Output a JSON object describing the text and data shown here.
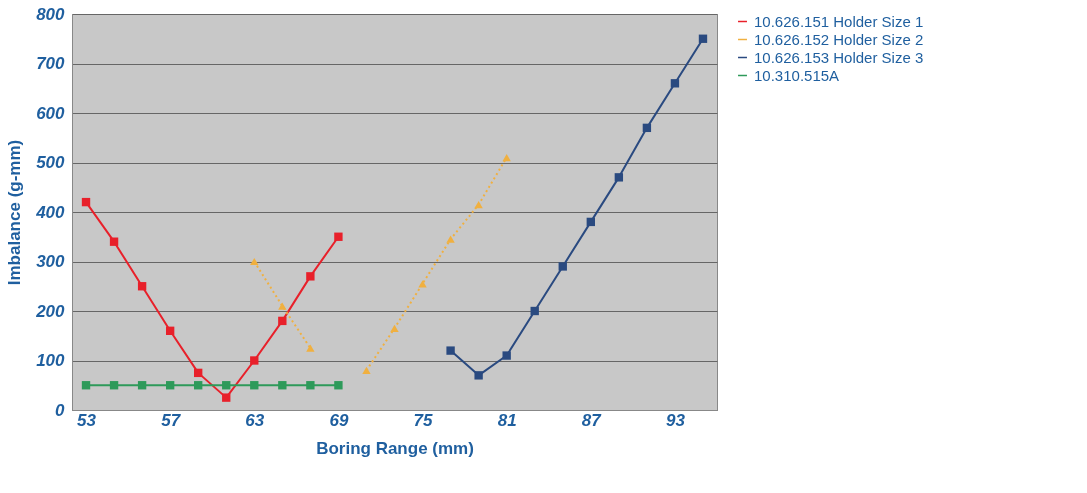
{
  "chart_data": {
    "type": "line",
    "xlabel": "Boring Range (mm)",
    "ylabel": "Imbalance (g-mm)",
    "categories": [
      "53",
      null,
      null,
      "57",
      null,
      null,
      "63",
      null,
      null,
      "69",
      null,
      null,
      "75",
      null,
      null,
      "81",
      null,
      null,
      "87",
      null,
      null,
      "93",
      null
    ],
    "ylim": [
      0,
      800
    ],
    "yticks": [
      0,
      100,
      200,
      300,
      400,
      500,
      600,
      700,
      800
    ],
    "grid": "y",
    "legend": "right",
    "series": [
      {
        "name": "10.626.151 Holder Size 1",
        "color": "#e8202a",
        "marker": "square",
        "line_style": "solid",
        "values": [
          420,
          340,
          250,
          160,
          75,
          25,
          100,
          180,
          270,
          350,
          null,
          null,
          null,
          null,
          null,
          null,
          null,
          null,
          null,
          null,
          null,
          null,
          null
        ]
      },
      {
        "name": "10.626.152 Holder Size 2",
        "color": "#f0b040",
        "marker": "triangle",
        "line_style": "dotted",
        "values": [
          null,
          null,
          null,
          null,
          null,
          null,
          300,
          210,
          125,
          null,
          80,
          165,
          255,
          345,
          415,
          510,
          null,
          null,
          null,
          null,
          null,
          null,
          null
        ]
      },
      {
        "name": "10.626.153 Holder Size 3",
        "color": "#2a4a80",
        "marker": "square",
        "line_style": "solid",
        "values": [
          null,
          null,
          null,
          null,
          null,
          null,
          null,
          null,
          null,
          null,
          null,
          null,
          null,
          120,
          70,
          110,
          200,
          290,
          380,
          470,
          570,
          660,
          750
        ]
      },
      {
        "name": "10.310.515A",
        "color": "#2e9a5a",
        "marker": "square",
        "line_style": "solid",
        "values": [
          50,
          50,
          50,
          50,
          50,
          50,
          50,
          50,
          50,
          50,
          null,
          null,
          null,
          null,
          null,
          null,
          null,
          null,
          null,
          null,
          null,
          null,
          null
        ]
      }
    ]
  }
}
